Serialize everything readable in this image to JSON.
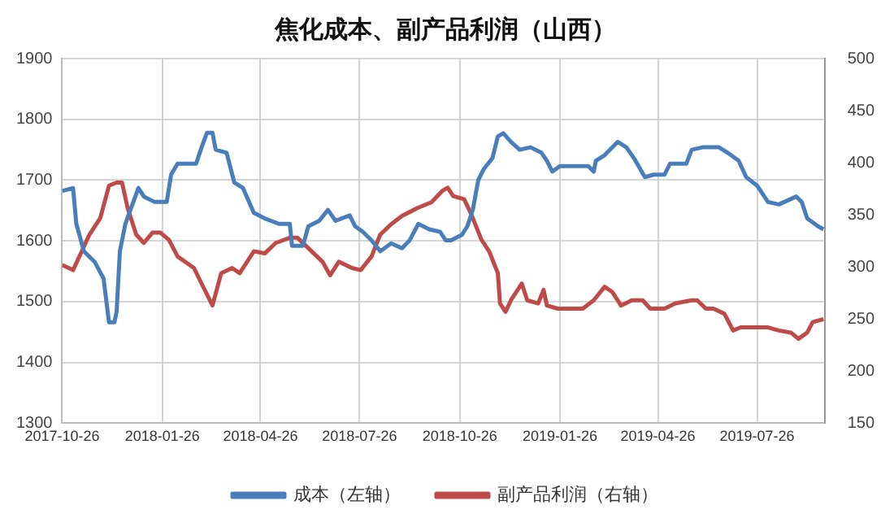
{
  "chart_data": {
    "type": "line",
    "title": "焦化成本、副产品利润（山西）",
    "xlim": [
      "2017-10-26",
      "2019-09-26"
    ],
    "xticks": [
      "2017-10-26",
      "2018-01-26",
      "2018-04-26",
      "2018-07-26",
      "2018-10-26",
      "2019-01-26",
      "2019-04-26",
      "2019-07-26"
    ],
    "ylim": [
      1300,
      1900
    ],
    "yticks": [
      1300,
      1400,
      1500,
      1600,
      1700,
      1800,
      1900
    ],
    "y2lim": [
      150,
      500
    ],
    "y2ticks": [
      150,
      200,
      250,
      300,
      350,
      400,
      450,
      500
    ],
    "grid": true,
    "legend": "bottom",
    "marker": "none",
    "line_style": "solid",
    "series": [
      {
        "name": "成本（左轴）",
        "color": "#4a7ebb",
        "x": [
          "2017-10-26",
          "2017-11-05",
          "2017-11-08",
          "2017-11-15",
          "2017-11-25",
          "2017-12-03",
          "2017-12-08",
          "2017-12-13",
          "2017-12-15",
          "2017-12-18",
          "2017-12-23",
          "2018-01-04",
          "2018-01-09",
          "2018-01-19",
          "2018-01-30",
          "2018-02-03",
          "2018-02-09",
          "2018-02-26",
          "2018-03-03",
          "2018-03-08",
          "2018-03-13",
          "2018-03-16",
          "2018-03-26",
          "2018-04-02",
          "2018-04-10",
          "2018-04-20",
          "2018-04-30",
          "2018-05-13",
          "2018-05-23",
          "2018-05-25",
          "2018-06-04",
          "2018-06-09",
          "2018-06-19",
          "2018-06-27",
          "2018-07-04",
          "2018-07-17",
          "2018-07-22",
          "2018-07-29",
          "2018-08-06",
          "2018-08-14",
          "2018-08-24",
          "2018-09-03",
          "2018-09-10",
          "2018-09-18",
          "2018-09-28",
          "2018-10-08",
          "2018-10-13",
          "2018-10-18",
          "2018-10-28",
          "2018-11-02",
          "2018-11-07",
          "2018-11-12",
          "2018-11-17",
          "2018-11-25",
          "2018-11-30",
          "2018-12-05",
          "2018-12-12",
          "2018-12-20",
          "2018-12-30",
          "2019-01-09",
          "2019-01-14",
          "2019-01-19",
          "2019-01-26",
          "2019-02-21",
          "2019-02-26",
          "2019-02-28",
          "2019-03-08",
          "2019-03-20",
          "2019-03-28",
          "2019-04-04",
          "2019-04-14",
          "2019-04-22",
          "2019-05-02",
          "2019-05-07",
          "2019-05-22",
          "2019-05-27",
          "2019-06-06",
          "2019-06-21",
          "2019-06-29",
          "2019-07-09",
          "2019-07-16",
          "2019-07-26",
          "2019-08-05",
          "2019-08-15",
          "2019-08-31",
          "2019-09-05",
          "2019-09-10",
          "2019-09-20",
          "2019-09-25"
        ],
        "values": [
          1682,
          1687,
          1628,
          1583,
          1565,
          1538,
          1466,
          1466,
          1484,
          1583,
          1628,
          1687,
          1673,
          1664,
          1664,
          1709,
          1727,
          1727,
          1754,
          1778,
          1778,
          1750,
          1745,
          1696,
          1687,
          1646,
          1637,
          1628,
          1628,
          1592,
          1592,
          1624,
          1633,
          1651,
          1633,
          1642,
          1624,
          1615,
          1601,
          1583,
          1596,
          1588,
          1601,
          1628,
          1619,
          1615,
          1601,
          1601,
          1610,
          1624,
          1651,
          1700,
          1718,
          1736,
          1772,
          1777,
          1763,
          1750,
          1754,
          1745,
          1732,
          1714,
          1723,
          1723,
          1714,
          1732,
          1741,
          1763,
          1754,
          1736,
          1705,
          1709,
          1709,
          1727,
          1727,
          1750,
          1754,
          1754,
          1745,
          1732,
          1705,
          1691,
          1664,
          1660,
          1673,
          1664,
          1637,
          1624,
          1619
        ]
      },
      {
        "name": "副产品利润（右轴）",
        "color": "#be4b48",
        "axis": "y2",
        "x": [
          "2017-10-26",
          "2017-11-05",
          "2017-11-13",
          "2017-11-20",
          "2017-11-30",
          "2017-12-08",
          "2017-12-15",
          "2017-12-20",
          "2017-12-25",
          "2018-01-02",
          "2018-01-09",
          "2018-01-17",
          "2018-01-24",
          "2018-02-01",
          "2018-02-09",
          "2018-02-24",
          "2018-03-03",
          "2018-03-13",
          "2018-03-21",
          "2018-03-31",
          "2018-04-07",
          "2018-04-20",
          "2018-04-30",
          "2018-05-10",
          "2018-05-23",
          "2018-05-30",
          "2018-06-09",
          "2018-06-22",
          "2018-06-29",
          "2018-07-07",
          "2018-07-19",
          "2018-07-27",
          "2018-08-06",
          "2018-08-14",
          "2018-08-24",
          "2018-09-03",
          "2018-09-18",
          "2018-09-30",
          "2018-10-10",
          "2018-10-15",
          "2018-10-20",
          "2018-10-30",
          "2018-11-05",
          "2018-11-15",
          "2018-11-22",
          "2018-11-30",
          "2018-12-02",
          "2018-12-07",
          "2018-12-12",
          "2018-12-22",
          "2018-12-27",
          "2019-01-06",
          "2019-01-11",
          "2019-01-14",
          "2019-01-24",
          "2019-02-16",
          "2019-02-26",
          "2019-03-08",
          "2019-03-15",
          "2019-03-23",
          "2019-04-02",
          "2019-04-12",
          "2019-04-19",
          "2019-05-02",
          "2019-05-12",
          "2019-05-27",
          "2019-06-01",
          "2019-06-09",
          "2019-06-16",
          "2019-06-26",
          "2019-07-04",
          "2019-07-11",
          "2019-08-05",
          "2019-08-15",
          "2019-08-26",
          "2019-09-02",
          "2019-09-10",
          "2019-09-15",
          "2019-09-25"
        ],
        "values": [
          302,
          297,
          315,
          331,
          347,
          378,
          381,
          381,
          357,
          331,
          323,
          333,
          333,
          326,
          310,
          299,
          284,
          263,
          294,
          299,
          294,
          315,
          313,
          323,
          328,
          328,
          318,
          305,
          292,
          305,
          299,
          297,
          310,
          331,
          341,
          349,
          357,
          362,
          373,
          376,
          368,
          365,
          352,
          326,
          315,
          294,
          265,
          257,
          268,
          284,
          268,
          265,
          278,
          263,
          260,
          260,
          268,
          281,
          276,
          263,
          268,
          268,
          260,
          260,
          265,
          268,
          268,
          260,
          260,
          255,
          239,
          242,
          242,
          239,
          237,
          231,
          237,
          247,
          250
        ]
      }
    ]
  }
}
